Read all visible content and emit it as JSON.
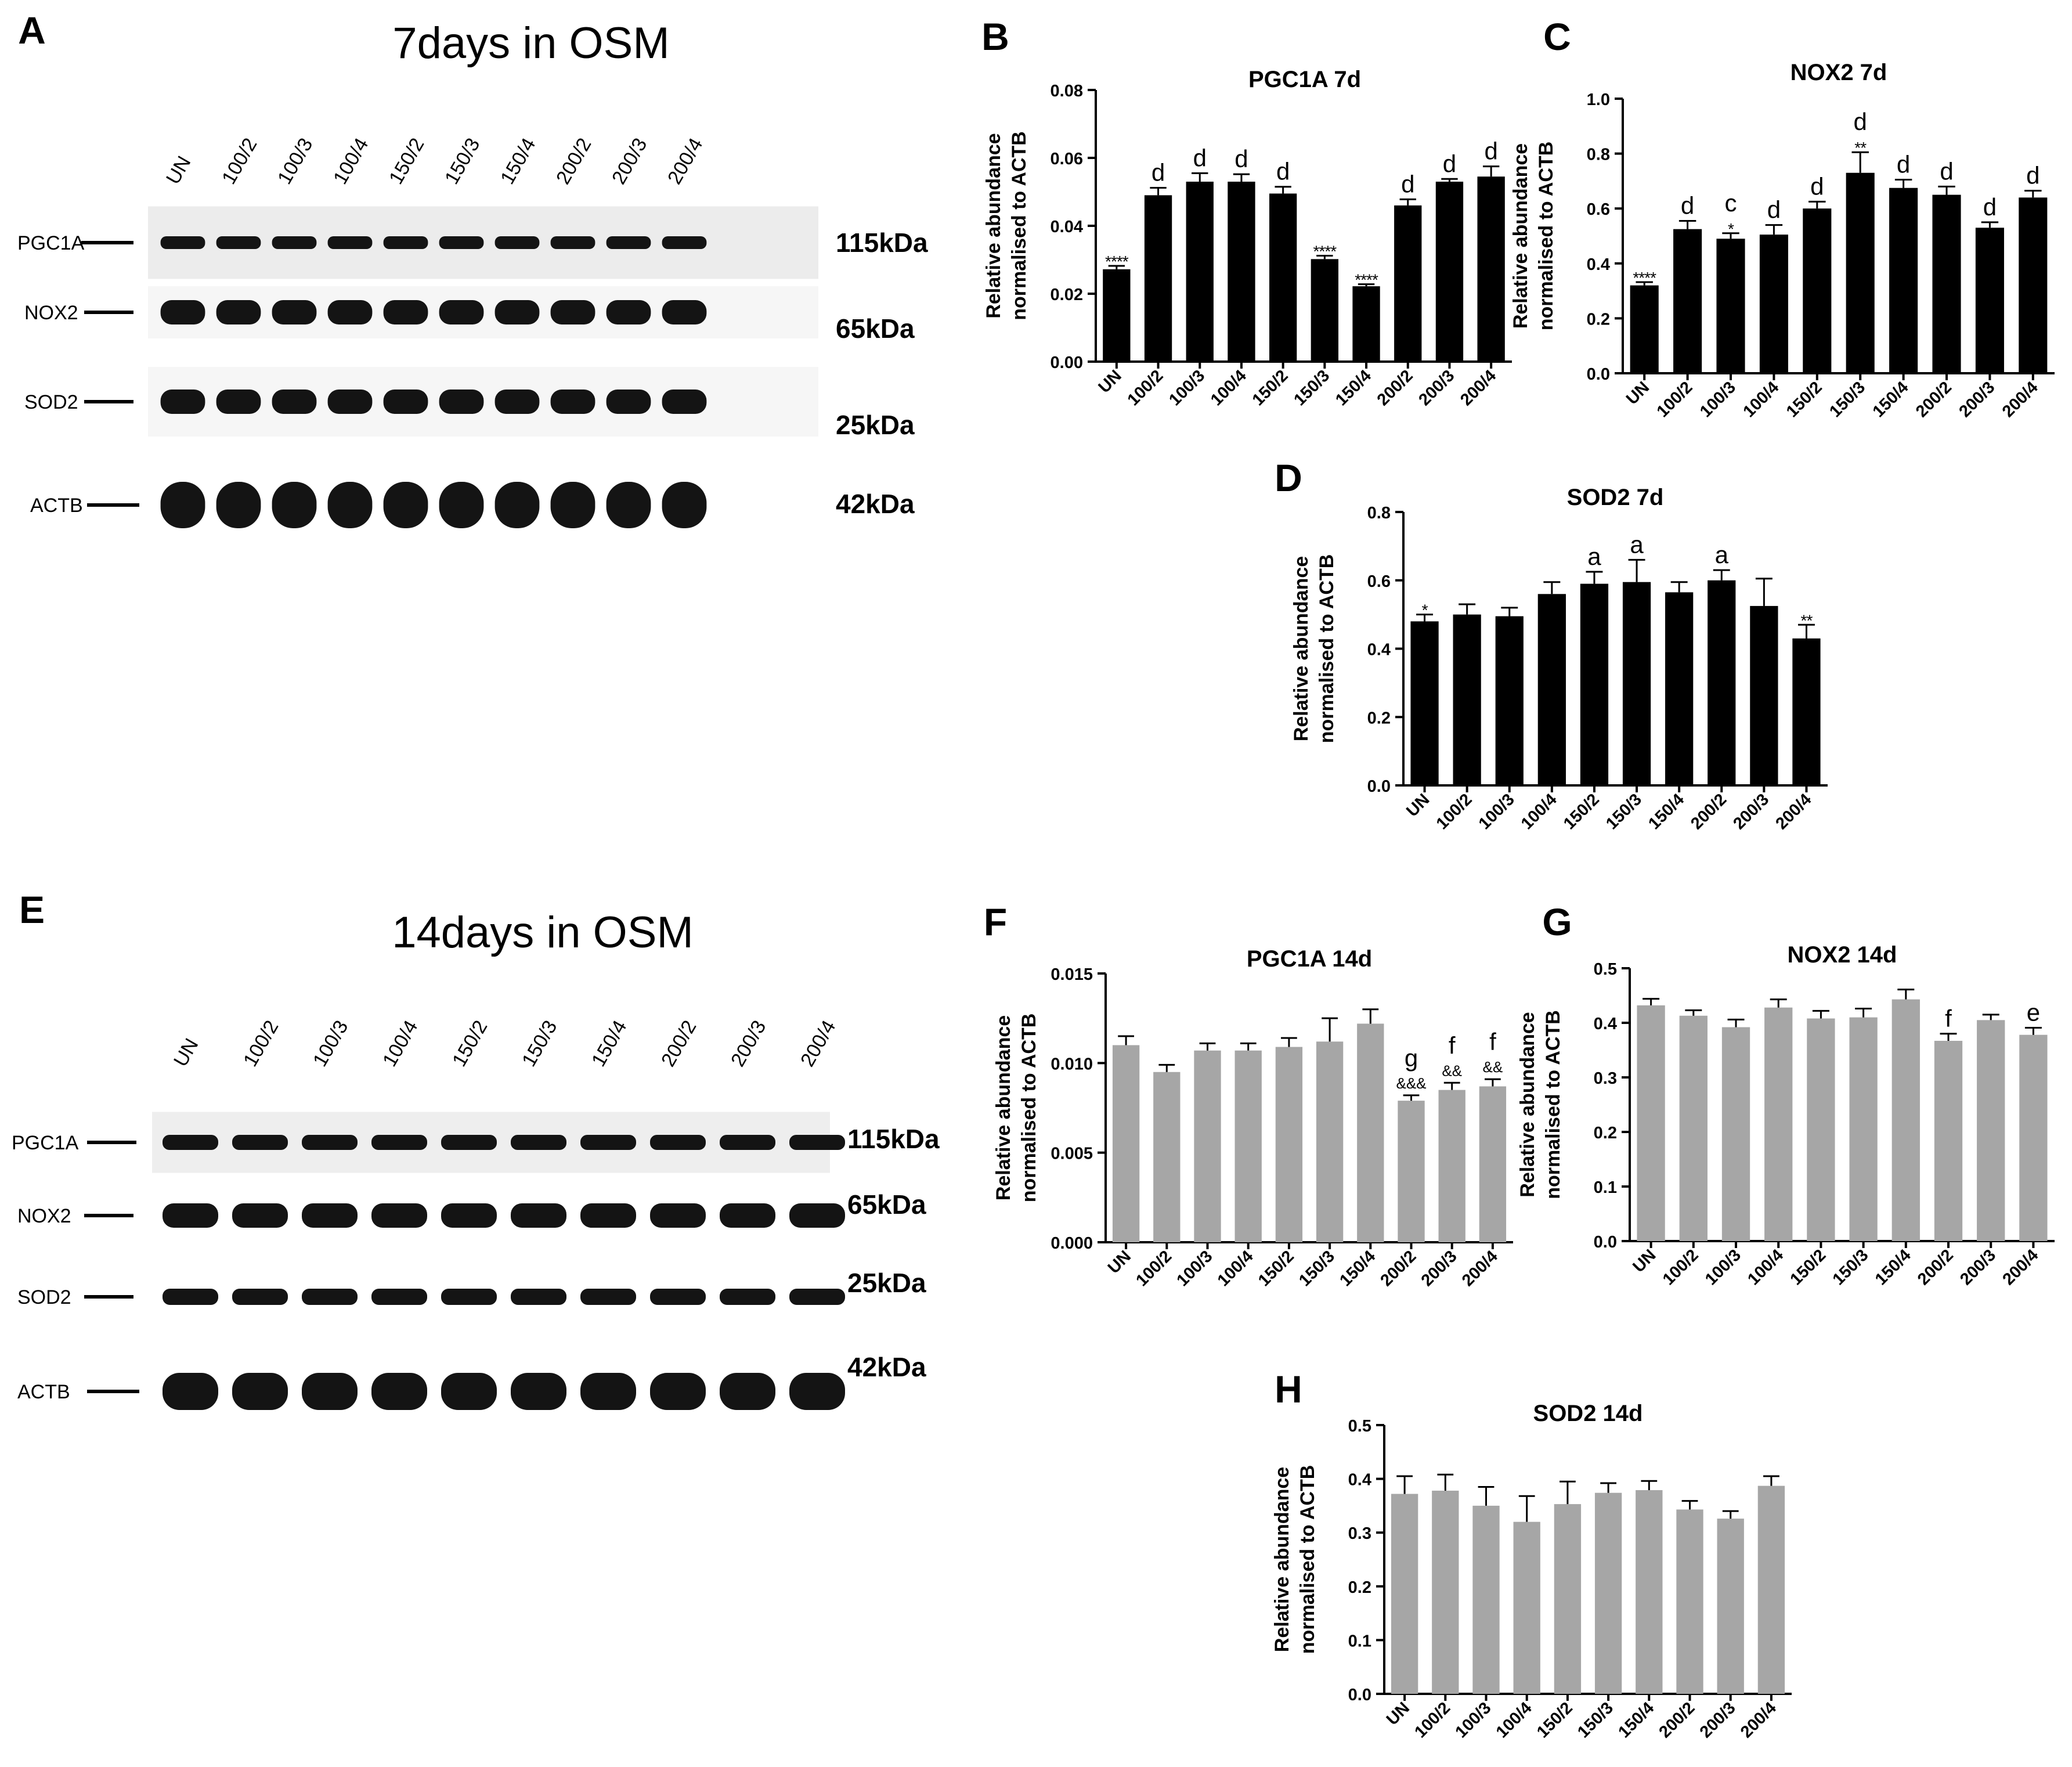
{
  "colors": {
    "black_bar": "#000000",
    "gray_bar": "#a6a6a6",
    "axis": "#000000",
    "band": "#141414",
    "membrane": "#e9e9e9",
    "membrane_light": "#f4f4f4"
  },
  "lanes": [
    "UN",
    "100/2",
    "100/3",
    "100/4",
    "150/2",
    "150/3",
    "150/4",
    "200/2",
    "200/3",
    "200/4"
  ],
  "blots": [
    {
      "panel": "A",
      "title": "7days in OSM",
      "rows": [
        {
          "protein": "PGC1A",
          "kda": "115kDa"
        },
        {
          "protein": "NOX2",
          "kda": "65kDa"
        },
        {
          "protein": "SOD2",
          "kda": "25kDa"
        },
        {
          "protein": "ACTB",
          "kda": "42kDa"
        }
      ]
    },
    {
      "panel": "E",
      "title": "14days in OSM",
      "rows": [
        {
          "protein": "PGC1A",
          "kda": "115kDa"
        },
        {
          "protein": "NOX2",
          "kda": "65kDa"
        },
        {
          "protein": "SOD2",
          "kda": "25kDa"
        },
        {
          "protein": "ACTB",
          "kda": "42kDa"
        }
      ]
    }
  ],
  "chart_data": [
    {
      "panel": "B",
      "type": "bar",
      "title": "PGC1A 7d",
      "bar_color": "#000000",
      "xlabel": "",
      "ylabel": [
        "Relative abundance",
        "normalised to ACTB"
      ],
      "categories": [
        "UN",
        "100/2",
        "100/3",
        "100/4",
        "150/2",
        "150/3",
        "150/4",
        "200/2",
        "200/3",
        "200/4"
      ],
      "values": [
        0.0272,
        0.049,
        0.053,
        0.053,
        0.0495,
        0.0302,
        0.0222,
        0.046,
        0.053,
        0.0545
      ],
      "errors": [
        0.001,
        0.0022,
        0.0025,
        0.0022,
        0.002,
        0.001,
        0.0006,
        0.0018,
        0.0008,
        0.003
      ],
      "letters": [
        "",
        "d",
        "d",
        "d",
        "d",
        "",
        "",
        "d",
        "d",
        "d"
      ],
      "stars": [
        "****",
        "",
        "",
        "",
        "",
        "****",
        "****",
        "",
        "",
        ""
      ],
      "ylim": [
        0,
        0.08
      ],
      "yticks": [
        "0.00",
        "0.02",
        "0.04",
        "0.06",
        "0.08"
      ],
      "yticks_values": [
        0,
        0.02,
        0.04,
        0.06,
        0.08
      ]
    },
    {
      "panel": "C",
      "type": "bar",
      "title": "NOX2 7d",
      "bar_color": "#000000",
      "xlabel": "",
      "ylabel": [
        "Relative abundance",
        "normalised to ACTB"
      ],
      "categories": [
        "UN",
        "100/2",
        "100/3",
        "100/4",
        "150/2",
        "150/3",
        "150/4",
        "200/2",
        "200/3",
        "200/4"
      ],
      "values": [
        0.32,
        0.525,
        0.49,
        0.505,
        0.6,
        0.73,
        0.675,
        0.65,
        0.53,
        0.64
      ],
      "errors": [
        0.012,
        0.03,
        0.02,
        0.035,
        0.025,
        0.075,
        0.03,
        0.03,
        0.02,
        0.025
      ],
      "letters": [
        "",
        "d",
        "c",
        "d",
        "d",
        "d",
        "d",
        "d",
        "d",
        "d"
      ],
      "stars": [
        "****",
        "",
        "*",
        "",
        "",
        "**",
        "",
        "",
        "",
        ""
      ],
      "ylim": [
        0,
        1.0
      ],
      "yticks": [
        "0.0",
        "0.2",
        "0.4",
        "0.6",
        "0.8",
        "1.0"
      ],
      "yticks_values": [
        0,
        0.2,
        0.4,
        0.6,
        0.8,
        1.0
      ]
    },
    {
      "panel": "D",
      "type": "bar",
      "title": "SOD2 7d",
      "bar_color": "#000000",
      "xlabel": "",
      "ylabel": [
        "Relative abundance",
        "normalised to ACTB"
      ],
      "categories": [
        "UN",
        "100/2",
        "100/3",
        "100/4",
        "150/2",
        "150/3",
        "150/4",
        "200/2",
        "200/3",
        "200/4"
      ],
      "values": [
        0.48,
        0.5,
        0.495,
        0.56,
        0.59,
        0.595,
        0.565,
        0.6,
        0.525,
        0.43
      ],
      "errors": [
        0.02,
        0.03,
        0.025,
        0.035,
        0.035,
        0.065,
        0.03,
        0.03,
        0.08,
        0.04
      ],
      "letters": [
        "",
        "",
        "",
        "",
        "a",
        "a",
        "",
        "a",
        "",
        ""
      ],
      "stars": [
        "*",
        "",
        "",
        "",
        "",
        "",
        "",
        "",
        "",
        "**"
      ],
      "ylim": [
        0,
        0.8
      ],
      "yticks": [
        "0.0",
        "0.2",
        "0.4",
        "0.6",
        "0.8"
      ],
      "yticks_values": [
        0,
        0.2,
        0.4,
        0.6,
        0.8
      ]
    },
    {
      "panel": "F",
      "type": "bar",
      "title": "PGC1A 14d",
      "bar_color": "#a6a6a6",
      "xlabel": "",
      "ylabel": [
        "Relative abundance",
        "normalised to ACTB"
      ],
      "categories": [
        "UN",
        "100/2",
        "100/3",
        "100/4",
        "150/2",
        "150/3",
        "150/4",
        "200/2",
        "200/3",
        "200/4"
      ],
      "values": [
        0.011,
        0.0095,
        0.0107,
        0.0107,
        0.0109,
        0.0112,
        0.0122,
        0.0079,
        0.0085,
        0.0087
      ],
      "errors": [
        0.0005,
        0.0004,
        0.0004,
        0.0004,
        0.0005,
        0.0013,
        0.0008,
        0.0003,
        0.0004,
        0.0004
      ],
      "letters": [
        "",
        "",
        "",
        "",
        "",
        "",
        "",
        "g",
        "f",
        "f"
      ],
      "stars": [
        "",
        "",
        "",
        "",
        "",
        "",
        "",
        "&&&",
        "&&",
        "&&"
      ],
      "ylim": [
        0,
        0.015
      ],
      "yticks": [
        "0.000",
        "0.005",
        "0.010",
        "0.015"
      ],
      "yticks_values": [
        0,
        0.005,
        0.01,
        0.015
      ]
    },
    {
      "panel": "G",
      "type": "bar",
      "title": "NOX2 14d",
      "bar_color": "#a6a6a6",
      "xlabel": "",
      "ylabel": [
        "Relative abundance",
        "normalised to ACTB"
      ],
      "categories": [
        "UN",
        "100/2",
        "100/3",
        "100/4",
        "150/2",
        "150/3",
        "150/4",
        "200/2",
        "200/3",
        "200/4"
      ],
      "values": [
        0.432,
        0.413,
        0.392,
        0.428,
        0.408,
        0.41,
        0.443,
        0.367,
        0.405,
        0.378
      ],
      "errors": [
        0.012,
        0.01,
        0.014,
        0.015,
        0.014,
        0.016,
        0.018,
        0.013,
        0.01,
        0.013
      ],
      "letters": [
        "",
        "",
        "",
        "",
        "",
        "",
        "",
        "f",
        "",
        "e"
      ],
      "stars": [
        "",
        "",
        "",
        "",
        "",
        "",
        "",
        "",
        "",
        ""
      ],
      "ylim": [
        0,
        0.5
      ],
      "yticks": [
        "0.0",
        "0.1",
        "0.2",
        "0.3",
        "0.4",
        "0.5"
      ],
      "yticks_values": [
        0,
        0.1,
        0.2,
        0.3,
        0.4,
        0.5
      ]
    },
    {
      "panel": "H",
      "type": "bar",
      "title": "SOD2 14d",
      "bar_color": "#a6a6a6",
      "xlabel": "",
      "ylabel": [
        "Relative abundance",
        "normalised to ACTB"
      ],
      "categories": [
        "UN",
        "100/2",
        "100/3",
        "100/4",
        "150/2",
        "150/3",
        "150/4",
        "200/2",
        "200/3",
        "200/4"
      ],
      "values": [
        0.372,
        0.378,
        0.35,
        0.32,
        0.353,
        0.374,
        0.379,
        0.343,
        0.326,
        0.387
      ],
      "errors": [
        0.033,
        0.03,
        0.035,
        0.048,
        0.042,
        0.018,
        0.017,
        0.016,
        0.014,
        0.018
      ],
      "letters": [
        "",
        "",
        "",
        "",
        "",
        "",
        "",
        "",
        "",
        ""
      ],
      "stars": [
        "",
        "",
        "",
        "",
        "",
        "",
        "",
        "",
        "",
        ""
      ],
      "ylim": [
        0,
        0.5
      ],
      "yticks": [
        "0.0",
        "0.1",
        "0.2",
        "0.3",
        "0.4",
        "0.5"
      ],
      "yticks_values": [
        0,
        0.1,
        0.2,
        0.3,
        0.4,
        0.5
      ]
    }
  ]
}
